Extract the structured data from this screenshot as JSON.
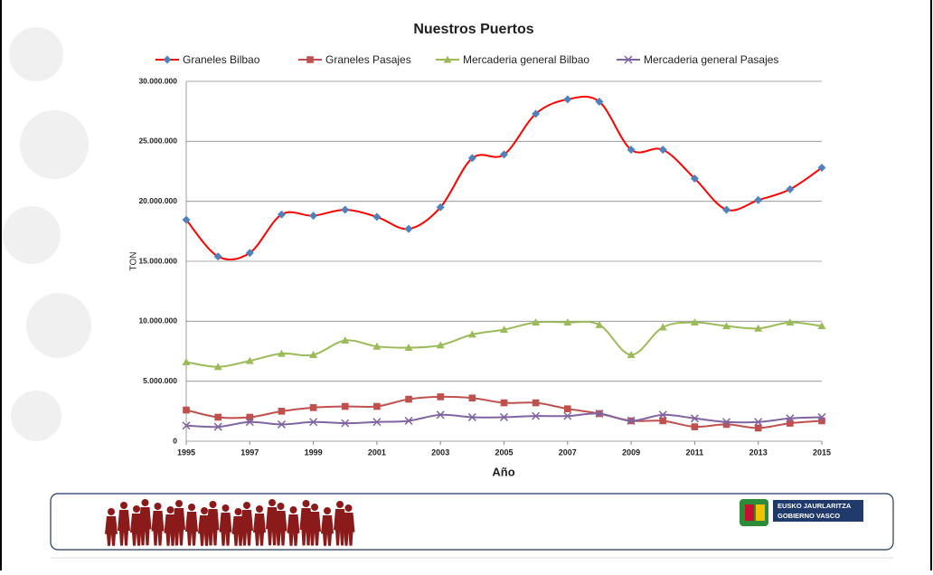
{
  "chart_data": {
    "type": "line",
    "title": "Nuestros Puertos",
    "x_label": "Año",
    "y_label": "TON",
    "x": [
      1995,
      1996,
      1997,
      1998,
      1999,
      2000,
      2001,
      2002,
      2003,
      2004,
      2005,
      2006,
      2007,
      2008,
      2009,
      2010,
      2011,
      2012,
      2013,
      2014,
      2015
    ],
    "xlim": [
      1995,
      2015
    ],
    "xticks": [
      1995,
      1997,
      1999,
      2001,
      2003,
      2005,
      2007,
      2009,
      2011,
      2013,
      2015
    ],
    "ylim": [
      0,
      30000000
    ],
    "yticks": [
      0,
      {
        "value": 5000000,
        "label": "5.000.000"
      },
      {
        "value": 10000000,
        "label": "10.000.000"
      },
      {
        "value": 15000000,
        "label": "15.000.000"
      },
      {
        "value": 20000000,
        "label": "20.000.000"
      },
      {
        "value": 25000000,
        "label": "25.000.000"
      },
      {
        "value": 30000000,
        "label": "30.000.000"
      }
    ],
    "grid": true,
    "smooth": true,
    "legend": "top",
    "series": [
      {
        "name": "Graneles Bilbao",
        "color": "#ff0000",
        "marker": "diamond",
        "marker_color": "#4f81bd",
        "values": [
          18460000,
          15400000,
          15700000,
          18900000,
          18800000,
          19300000,
          18700000,
          17700000,
          19500000,
          23600000,
          23900000,
          27300000,
          28500000,
          28300000,
          24300000,
          24300000,
          21900000,
          19300000,
          20100000,
          21000000,
          22800000
        ]
      },
      {
        "name": "Graneles Pasajes",
        "color": "#c0504d",
        "marker": "square",
        "marker_color": "#c0504d",
        "values": [
          2600000,
          2000000,
          2000000,
          2500000,
          2800000,
          2900000,
          2900000,
          3500000,
          3700000,
          3600000,
          3200000,
          3200000,
          2700000,
          2300000,
          1700000,
          1700000,
          1200000,
          1400000,
          1100000,
          1500000,
          1700000
        ]
      },
      {
        "name": "Mercaderia general Bilbao",
        "color": "#9bbb59",
        "marker": "triangle",
        "marker_color": "#9bbb59",
        "values": [
          6600000,
          6200000,
          6700000,
          7300000,
          7200000,
          8400000,
          7900000,
          7800000,
          8000000,
          8900000,
          9300000,
          9900000,
          9900000,
          9700000,
          7200000,
          9500000,
          9900000,
          9600000,
          9400000,
          9900000,
          9600000
        ]
      },
      {
        "name": "Mercaderia general Pasajes",
        "color": "#8064a2",
        "marker": "x",
        "marker_color": "#8064a2",
        "values": [
          1300000,
          1200000,
          1600000,
          1400000,
          1600000,
          1500000,
          1600000,
          1700000,
          2200000,
          2000000,
          2000000,
          2100000,
          2100000,
          2300000,
          1700000,
          2200000,
          1900000,
          1600000,
          1600000,
          1900000,
          2000000
        ]
      }
    ]
  },
  "footer": {
    "logo_lines": [
      "EUSKO JAURLARITZA",
      "GOBIERNO VASCO"
    ]
  }
}
